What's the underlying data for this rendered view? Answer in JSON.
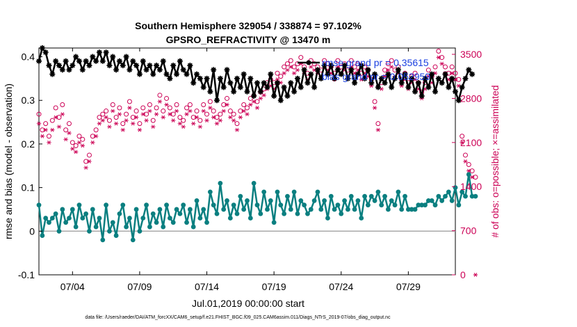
{
  "chart_data": {
    "type": "line",
    "title": "Southern Hemisphere 329054 / 338874 = 97.102%",
    "subtitle": "GPSRO_REFRACTIVITY @ 13470 m",
    "xlabel": "Jul.01,2019 00:00:00 start",
    "ylabel_left": "rmse and bias (model - observation)",
    "ylabel_right": "# of obs: o=possible; ×=assimilated",
    "footer": "data file: /Users/raeder/DAI/ATM_forcXX/CAM6_setup/f.e21.FHIST_BGC.f09_025.CAM6assim.011/Diags_NTrS_2019-07/obs_diag_output.nc",
    "x_range_days": [
      1.5,
      32.5
    ],
    "y_left_range": [
      -0.1,
      0.42
    ],
    "y_right_range": [
      0,
      3600
    ],
    "x_ticks": [
      {
        "day": 4,
        "label": "07/04"
      },
      {
        "day": 9,
        "label": "07/09"
      },
      {
        "day": 14,
        "label": "07/14"
      },
      {
        "day": 19,
        "label": "07/19"
      },
      {
        "day": 24,
        "label": "07/24"
      },
      {
        "day": 29,
        "label": "07/29"
      }
    ],
    "y_left_ticks": [
      {
        "value": -0.1,
        "label": "-0.1"
      },
      {
        "value": 0,
        "label": "0"
      },
      {
        "value": 0.1,
        "label": "0.1"
      },
      {
        "value": 0.2,
        "label": "0.2"
      },
      {
        "value": 0.3,
        "label": "0.3"
      },
      {
        "value": 0.4,
        "label": "0.4"
      }
    ],
    "y_right_ticks": [
      {
        "value": 0,
        "label": "0"
      },
      {
        "value": 700,
        "label": "700"
      },
      {
        "value": 1400,
        "label": "1400"
      },
      {
        "value": 2100,
        "label": "2100"
      },
      {
        "value": 2800,
        "label": "2800"
      },
      {
        "value": 3500,
        "label": "3500"
      }
    ],
    "legend": [
      "rmse grand pr = 0.35615",
      "bias grand pr = 0.052959"
    ],
    "x_start_day": 1.5,
    "x_step_days": 0.25,
    "series": [
      {
        "name": "rmse",
        "axis": "left",
        "color": "#000000",
        "marker": "star",
        "values": [
          0.39,
          0.42,
          0.41,
          0.38,
          0.36,
          0.39,
          0.38,
          0.37,
          0.39,
          0.37,
          0.38,
          0.4,
          0.39,
          0.37,
          0.39,
          0.38,
          0.4,
          0.39,
          0.41,
          0.39,
          0.41,
          0.38,
          0.4,
          0.37,
          0.39,
          0.38,
          0.4,
          0.37,
          0.39,
          0.38,
          0.36,
          0.39,
          0.37,
          0.38,
          0.36,
          0.38,
          0.37,
          0.39,
          0.36,
          0.35,
          0.38,
          0.36,
          0.39,
          0.37,
          0.36,
          0.38,
          0.34,
          0.36,
          0.35,
          0.33,
          0.35,
          0.32,
          0.37,
          0.3,
          0.35,
          0.33,
          0.37,
          0.34,
          0.32,
          0.35,
          0.33,
          0.36,
          0.32,
          0.35,
          0.31,
          0.34,
          0.32,
          0.34,
          0.33,
          0.36,
          0.31,
          0.34,
          0.3,
          0.33,
          0.31,
          0.34,
          0.32,
          0.35,
          0.33,
          0.37,
          0.34,
          0.36,
          0.33,
          0.37,
          0.35,
          0.38,
          0.36,
          0.38,
          0.35,
          0.37,
          0.36,
          0.38,
          0.35,
          0.37,
          0.34,
          0.36,
          0.38,
          0.35,
          0.37,
          0.34,
          0.36,
          0.33,
          0.35,
          0.34,
          0.36,
          0.33,
          0.35,
          0.37,
          0.34,
          0.36,
          0.33,
          0.35,
          0.32,
          0.34,
          0.31,
          0.35,
          0.33,
          0.36,
          0.32,
          0.35,
          0.34,
          0.36,
          0.33,
          0.35,
          0.32,
          0.3,
          0.33,
          0.35,
          0.37,
          0.36
        ]
      },
      {
        "name": "bias",
        "axis": "left",
        "color": "#0a7f80",
        "marker": "dot",
        "values": [
          0.06,
          -0.01,
          0.03,
          0.02,
          0.03,
          0.04,
          0.0,
          0.05,
          0.02,
          0.03,
          0.05,
          0.01,
          0.06,
          0.03,
          0.04,
          0.0,
          0.05,
          0.01,
          0.03,
          -0.02,
          0.06,
          0.0,
          0.02,
          -0.01,
          0.04,
          0.06,
          0.01,
          0.03,
          -0.02,
          0.05,
          0.0,
          0.03,
          0.06,
          0.01,
          0.04,
          0.02,
          0.05,
          0.01,
          0.06,
          0.03,
          0.02,
          0.05,
          0.04,
          0.06,
          0.02,
          0.05,
          0.01,
          0.07,
          0.03,
          0.05,
          0.02,
          0.09,
          0.06,
          0.04,
          0.11,
          0.05,
          0.07,
          0.03,
          0.06,
          0.04,
          0.08,
          0.05,
          0.07,
          0.03,
          0.11,
          0.06,
          0.04,
          0.09,
          0.05,
          0.07,
          0.02,
          0.09,
          0.06,
          0.04,
          0.08,
          0.05,
          0.09,
          0.04,
          0.07,
          0.06,
          0.04,
          0.05,
          0.07,
          0.09,
          0.05,
          0.07,
          0.03,
          0.08,
          0.05,
          0.06,
          0.04,
          0.07,
          0.05,
          0.08,
          0.05,
          0.07,
          0.03,
          0.08,
          0.06,
          0.08,
          0.07,
          0.09,
          0.06,
          0.08,
          0.05,
          0.07,
          0.06,
          0.09,
          0.05,
          0.08,
          0.05,
          0.05,
          0.05,
          0.06,
          0.06,
          0.06,
          0.07,
          0.07,
          0.06,
          0.08,
          0.07,
          0.08,
          0.09,
          0.07,
          0.1,
          0.06,
          0.09,
          0.08,
          0.13,
          0.08,
          0.08
        ]
      },
      {
        "name": "possible",
        "axis": "right",
        "color": "#cc0055",
        "marker": "circle",
        "values": [
          2550,
          2300,
          2400,
          2200,
          2450,
          2650,
          2500,
          2700,
          2300,
          2400,
          2100,
          2050,
          2200,
          2150,
          1800,
          1900,
          2200,
          2300,
          2500,
          2550,
          2600,
          2450,
          2700,
          2500,
          2650,
          2400,
          2550,
          2750,
          2500,
          2600,
          2400,
          2650,
          2550,
          2700,
          2450,
          2650,
          2850,
          2600,
          2800,
          2650,
          2550,
          2700,
          2500,
          2450,
          2650,
          2700,
          2500,
          2600,
          2450,
          2700,
          2550,
          2750,
          2600,
          2500,
          2550,
          2700,
          2800,
          2600,
          2550,
          2400,
          2600,
          2700,
          2650,
          2800,
          2850,
          2750,
          2900,
          2950,
          3050,
          3100,
          3050,
          3200,
          3150,
          3300,
          3350,
          3400,
          3300,
          3350,
          3450,
          3300,
          3200,
          3400,
          3350,
          3300,
          3250,
          3400,
          3350,
          3300,
          3200,
          3400,
          3300,
          3350,
          3250,
          3400,
          3300,
          3350,
          3200,
          3300,
          3250,
          3100,
          2750,
          2400,
          3050,
          3250,
          3350,
          3400,
          3250,
          3300,
          3100,
          3200,
          3050,
          3150,
          3200,
          3050,
          2900,
          3050,
          3250,
          3150,
          3300,
          3550,
          3450,
          3300,
          3200,
          3300,
          3200,
          3100,
          2200,
          1900,
          1750,
          1650,
          1550
        ]
      },
      {
        "name": "assimilated",
        "axis": "right",
        "color": "#cc0055",
        "marker": "asterisk",
        "values": [
          2400,
          2200,
          2300,
          2100,
          2300,
          2500,
          2350,
          2550,
          2150,
          2250,
          2000,
          1950,
          2100,
          2050,
          1700,
          1800,
          2100,
          2200,
          2400,
          2450,
          2500,
          2350,
          2600,
          2400,
          2550,
          2300,
          2450,
          2650,
          2400,
          2500,
          2300,
          2550,
          2450,
          2600,
          2350,
          2550,
          2750,
          2500,
          2700,
          2550,
          2450,
          2600,
          2400,
          2350,
          2550,
          2600,
          2400,
          2500,
          2350,
          2600,
          2450,
          2650,
          2500,
          2400,
          2450,
          2600,
          2700,
          2500,
          2450,
          2300,
          2500,
          2600,
          2550,
          2700,
          2750,
          2650,
          2800,
          2850,
          2950,
          3000,
          2950,
          3100,
          3050,
          3200,
          3250,
          3300,
          3200,
          3250,
          3350,
          3200,
          3100,
          3300,
          3250,
          3200,
          3150,
          3300,
          3250,
          3200,
          3100,
          3300,
          3200,
          3250,
          3150,
          3300,
          3200,
          3250,
          3100,
          3200,
          3150,
          3000,
          2650,
          2300,
          2950,
          3150,
          3250,
          3300,
          3150,
          3200,
          3000,
          3100,
          2950,
          3050,
          3100,
          2950,
          2800,
          2950,
          3150,
          3050,
          3200,
          3450,
          3350,
          3200,
          3100,
          3200,
          3100,
          3000,
          2100,
          1800,
          1650,
          1550,
          0
        ]
      }
    ]
  }
}
